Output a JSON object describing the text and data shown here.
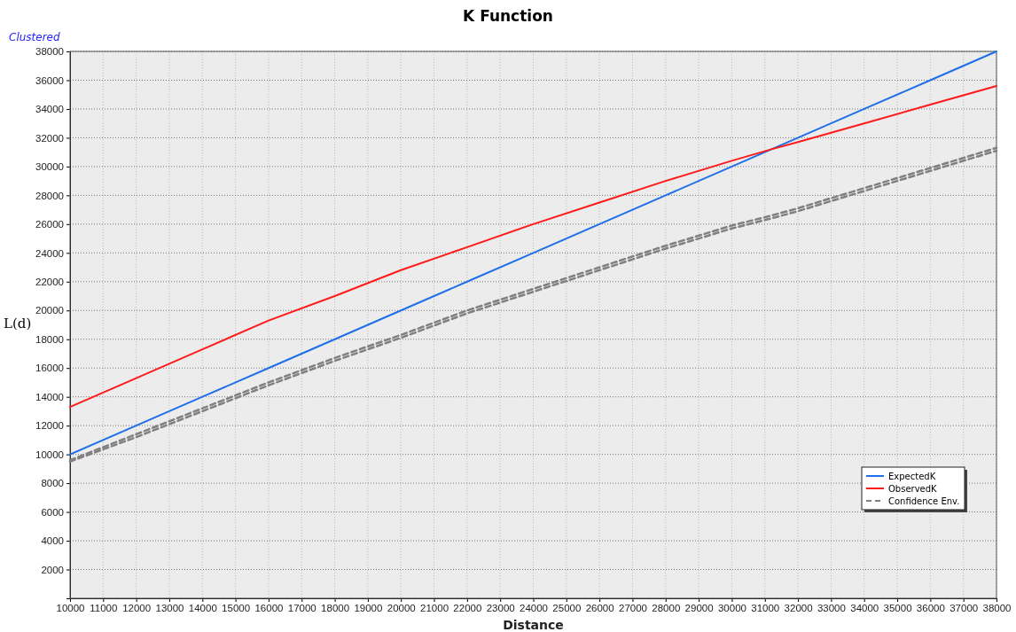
{
  "chart_data": {
    "type": "line",
    "title": "K Function",
    "xlabel": "Distance",
    "ylabel": "L(d)",
    "annotations": [
      "Clustered"
    ],
    "x": [
      10000,
      12000,
      14000,
      16000,
      18000,
      20000,
      22000,
      24000,
      26000,
      28000,
      30000,
      31200,
      32000,
      34000,
      36000,
      38000
    ],
    "series": [
      {
        "name": "ExpectedK",
        "color": "#1f6fe8",
        "values": [
          10000,
          12000,
          14000,
          16000,
          18000,
          20000,
          22000,
          24000,
          26000,
          28000,
          30000,
          31200,
          32000,
          34000,
          36000,
          38000
        ]
      },
      {
        "name": "ObservedK",
        "color": "#ff1a1a",
        "values": [
          13300,
          15300,
          17300,
          19300,
          21000,
          22800,
          24400,
          26000,
          27500,
          29000,
          30400,
          31200,
          31700,
          33000,
          34300,
          35600
        ]
      },
      {
        "name": "Confidence Env.",
        "color": "#808080",
        "line_style": "dashed",
        "values": [
          9500,
          11200,
          13000,
          14800,
          16500,
          18100,
          19800,
          21300,
          22800,
          24300,
          25700,
          26400,
          26900,
          28300,
          29700,
          31100
        ]
      },
      {
        "color": "#808080",
        "line_style": "dashed",
        "values": [
          9600,
          11400,
          13200,
          15000,
          16700,
          18300,
          20000,
          21500,
          23000,
          24500,
          25900,
          26600,
          27100,
          28500,
          29900,
          31300
        ]
      }
    ],
    "xlim": [
      10000,
      38000
    ],
    "xticks": [
      10000,
      11000,
      12000,
      13000,
      14000,
      15000,
      16000,
      17000,
      18000,
      19000,
      20000,
      21000,
      22000,
      23000,
      24000,
      25000,
      26000,
      27000,
      28000,
      29000,
      30000,
      31000,
      32000,
      33000,
      34000,
      35000,
      36000,
      37000,
      38000
    ],
    "ylim": [
      0,
      38000
    ],
    "yticks": [
      {
        "value": 0,
        "label": null
      },
      2000,
      4000,
      6000,
      8000,
      10000,
      12000,
      14000,
      16000,
      18000,
      20000,
      22000,
      24000,
      26000,
      28000,
      30000,
      32000,
      34000,
      36000,
      38000
    ],
    "grid": true,
    "legend": "bottom right",
    "marker": "none",
    "line_style": "solid"
  }
}
